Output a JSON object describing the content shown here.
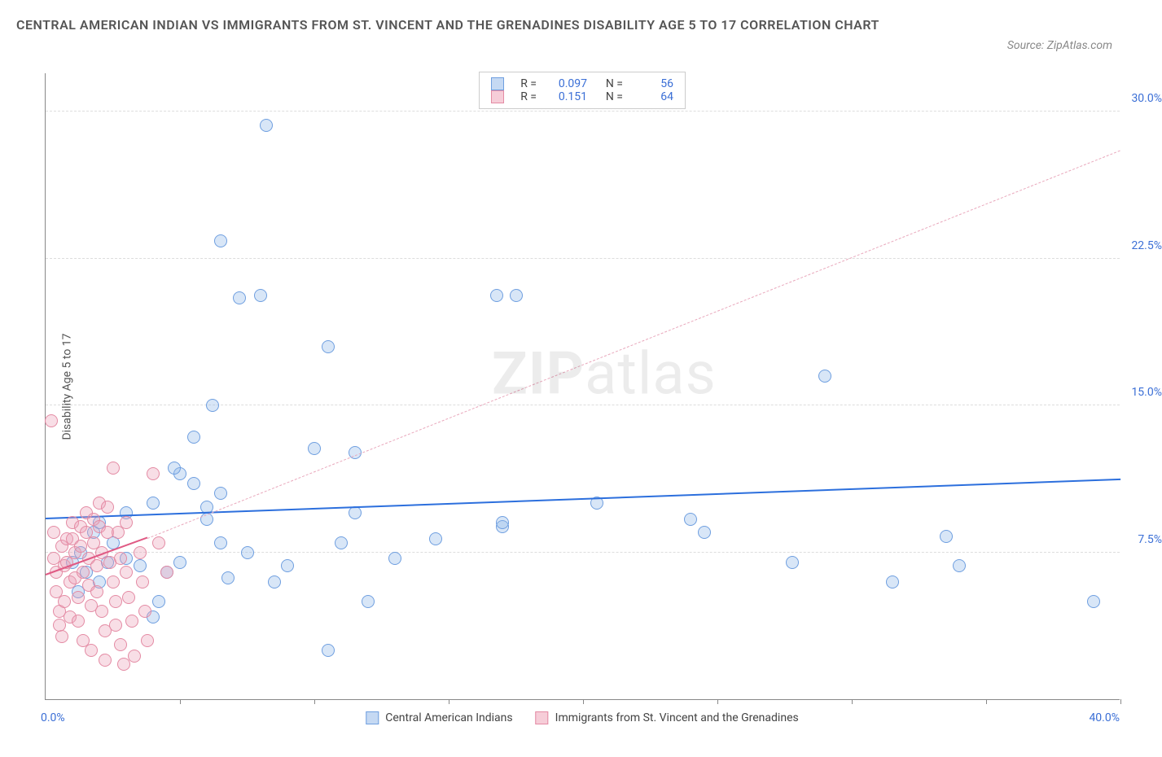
{
  "title": "CENTRAL AMERICAN INDIAN VS IMMIGRANTS FROM ST. VINCENT AND THE GRENADINES DISABILITY AGE 5 TO 17 CORRELATION CHART",
  "source_label": "Source: ZipAtlas.com",
  "y_axis_label": "Disability Age 5 to 17",
  "watermark_bold": "ZIP",
  "watermark_light": "atlas",
  "chart": {
    "type": "scatter",
    "background_color": "#ffffff",
    "xlim": [
      0,
      40
    ],
    "ylim": [
      0,
      32
    ],
    "x_ticks": [
      0,
      5,
      10,
      15,
      20,
      25,
      30,
      35,
      40
    ],
    "y_ticks": [
      7.5,
      15.0,
      22.5,
      30.0
    ],
    "y_tick_labels": [
      "7.5%",
      "15.0%",
      "22.5%",
      "30.0%"
    ],
    "x_min_label": "0.0%",
    "x_max_label": "40.0%",
    "grid_color": "#dddddd",
    "axis_color": "#888888",
    "marker_radius": 8,
    "legend_top": {
      "rows": [
        {
          "swatch_fill": "#c5d9f3",
          "swatch_stroke": "#6f9fe0",
          "r_label": "R =",
          "r_value": "0.097",
          "n_label": "N =",
          "n_value": "56"
        },
        {
          "swatch_fill": "#f6cdd8",
          "swatch_stroke": "#e48ba4",
          "r_label": "R =",
          "r_value": "0.151",
          "n_label": "N =",
          "n_value": "64"
        }
      ]
    },
    "legend_bottom": [
      {
        "swatch_fill": "#c5d9f3",
        "swatch_stroke": "#6f9fe0",
        "label": "Central American Indians"
      },
      {
        "swatch_fill": "#f6cdd8",
        "swatch_stroke": "#e48ba4",
        "label": "Immigrants from St. Vincent and the Grenadines"
      }
    ],
    "series": [
      {
        "name": "Central American Indians",
        "fill": "rgba(143,182,233,0.35)",
        "stroke": "#6f9fe0",
        "trend": {
          "x1": 0,
          "y1": 9.2,
          "x2": 40,
          "y2": 11.2,
          "color": "#2c6fdd",
          "width": 2,
          "dashed": false
        },
        "points": [
          [
            8.2,
            29.3
          ],
          [
            6.5,
            23.4
          ],
          [
            6.2,
            15.0
          ],
          [
            5.5,
            13.4
          ],
          [
            5.0,
            11.5
          ],
          [
            5.5,
            11.0
          ],
          [
            6.0,
            9.8
          ],
          [
            6.5,
            10.5
          ],
          [
            7.2,
            20.5
          ],
          [
            8.0,
            20.6
          ],
          [
            10.0,
            12.8
          ],
          [
            10.5,
            18.0
          ],
          [
            11.5,
            12.6
          ],
          [
            11.5,
            9.5
          ],
          [
            16.8,
            20.6
          ],
          [
            17.5,
            20.6
          ],
          [
            17.0,
            8.8
          ],
          [
            14.5,
            8.2
          ],
          [
            13.0,
            7.2
          ],
          [
            12.0,
            5.0
          ],
          [
            10.5,
            2.5
          ],
          [
            11.0,
            8.0
          ],
          [
            9.0,
            6.8
          ],
          [
            8.5,
            6.0
          ],
          [
            7.5,
            7.5
          ],
          [
            6.8,
            6.2
          ],
          [
            5.0,
            7.0
          ],
          [
            4.5,
            6.5
          ],
          [
            4.2,
            5.0
          ],
          [
            4.0,
            4.2
          ],
          [
            3.5,
            6.8
          ],
          [
            3.0,
            7.2
          ],
          [
            2.5,
            8.0
          ],
          [
            2.3,
            7.0
          ],
          [
            2.0,
            6.0
          ],
          [
            1.8,
            8.5
          ],
          [
            1.5,
            6.5
          ],
          [
            1.3,
            7.5
          ],
          [
            1.2,
            5.5
          ],
          [
            1.0,
            7.0
          ],
          [
            2.0,
            9.0
          ],
          [
            3.0,
            9.5
          ],
          [
            4.0,
            10.0
          ],
          [
            6.0,
            9.2
          ],
          [
            6.5,
            8.0
          ],
          [
            4.8,
            11.8
          ],
          [
            24.0,
            9.2
          ],
          [
            24.5,
            8.5
          ],
          [
            27.8,
            7.0
          ],
          [
            29.0,
            16.5
          ],
          [
            31.5,
            6.0
          ],
          [
            33.5,
            8.3
          ],
          [
            39.0,
            5.0
          ],
          [
            34.0,
            6.8
          ],
          [
            20.5,
            10.0
          ],
          [
            17.0,
            9.0
          ]
        ]
      },
      {
        "name": "Immigrants from St. Vincent and the Grenadines",
        "fill": "rgba(234,160,183,0.35)",
        "stroke": "#e48ba4",
        "trend": {
          "x1": 0,
          "y1": 6.3,
          "x2": 3.8,
          "y2": 8.2,
          "color": "#e05a84",
          "width": 2,
          "dashed": false
        },
        "trend_extend": {
          "x1": 3.8,
          "y1": 8.2,
          "x2": 40,
          "y2": 28.0,
          "color": "#e9a8bc",
          "width": 1,
          "dashed": true
        },
        "points": [
          [
            0.2,
            14.2
          ],
          [
            0.3,
            8.5
          ],
          [
            0.3,
            7.2
          ],
          [
            0.4,
            6.5
          ],
          [
            0.4,
            5.5
          ],
          [
            0.5,
            4.5
          ],
          [
            0.5,
            3.8
          ],
          [
            0.6,
            3.2
          ],
          [
            0.6,
            7.8
          ],
          [
            0.7,
            6.8
          ],
          [
            0.7,
            5.0
          ],
          [
            0.8,
            8.2
          ],
          [
            0.8,
            7.0
          ],
          [
            0.9,
            6.0
          ],
          [
            0.9,
            4.2
          ],
          [
            1.0,
            9.0
          ],
          [
            1.0,
            8.2
          ],
          [
            1.1,
            7.5
          ],
          [
            1.1,
            6.2
          ],
          [
            1.2,
            5.2
          ],
          [
            1.2,
            4.0
          ],
          [
            1.3,
            8.8
          ],
          [
            1.3,
            7.8
          ],
          [
            1.4,
            6.5
          ],
          [
            1.4,
            3.0
          ],
          [
            1.5,
            9.5
          ],
          [
            1.5,
            8.5
          ],
          [
            1.6,
            7.2
          ],
          [
            1.6,
            5.8
          ],
          [
            1.7,
            4.8
          ],
          [
            1.7,
            2.5
          ],
          [
            1.8,
            9.2
          ],
          [
            1.8,
            8.0
          ],
          [
            1.9,
            6.8
          ],
          [
            1.9,
            5.5
          ],
          [
            2.0,
            10.0
          ],
          [
            2.0,
            8.8
          ],
          [
            2.1,
            7.5
          ],
          [
            2.1,
            4.5
          ],
          [
            2.2,
            3.5
          ],
          [
            2.2,
            2.0
          ],
          [
            2.3,
            9.8
          ],
          [
            2.3,
            8.5
          ],
          [
            2.4,
            7.0
          ],
          [
            2.5,
            11.8
          ],
          [
            2.5,
            6.0
          ],
          [
            2.6,
            5.0
          ],
          [
            2.6,
            3.8
          ],
          [
            2.7,
            8.5
          ],
          [
            2.8,
            7.2
          ],
          [
            2.8,
            2.8
          ],
          [
            2.9,
            1.8
          ],
          [
            3.0,
            9.0
          ],
          [
            3.0,
            6.5
          ],
          [
            3.1,
            5.2
          ],
          [
            3.2,
            4.0
          ],
          [
            3.3,
            2.2
          ],
          [
            3.5,
            7.5
          ],
          [
            3.6,
            6.0
          ],
          [
            3.7,
            4.5
          ],
          [
            3.8,
            3.0
          ],
          [
            4.0,
            11.5
          ],
          [
            4.2,
            8.0
          ],
          [
            4.5,
            6.5
          ]
        ]
      }
    ]
  }
}
